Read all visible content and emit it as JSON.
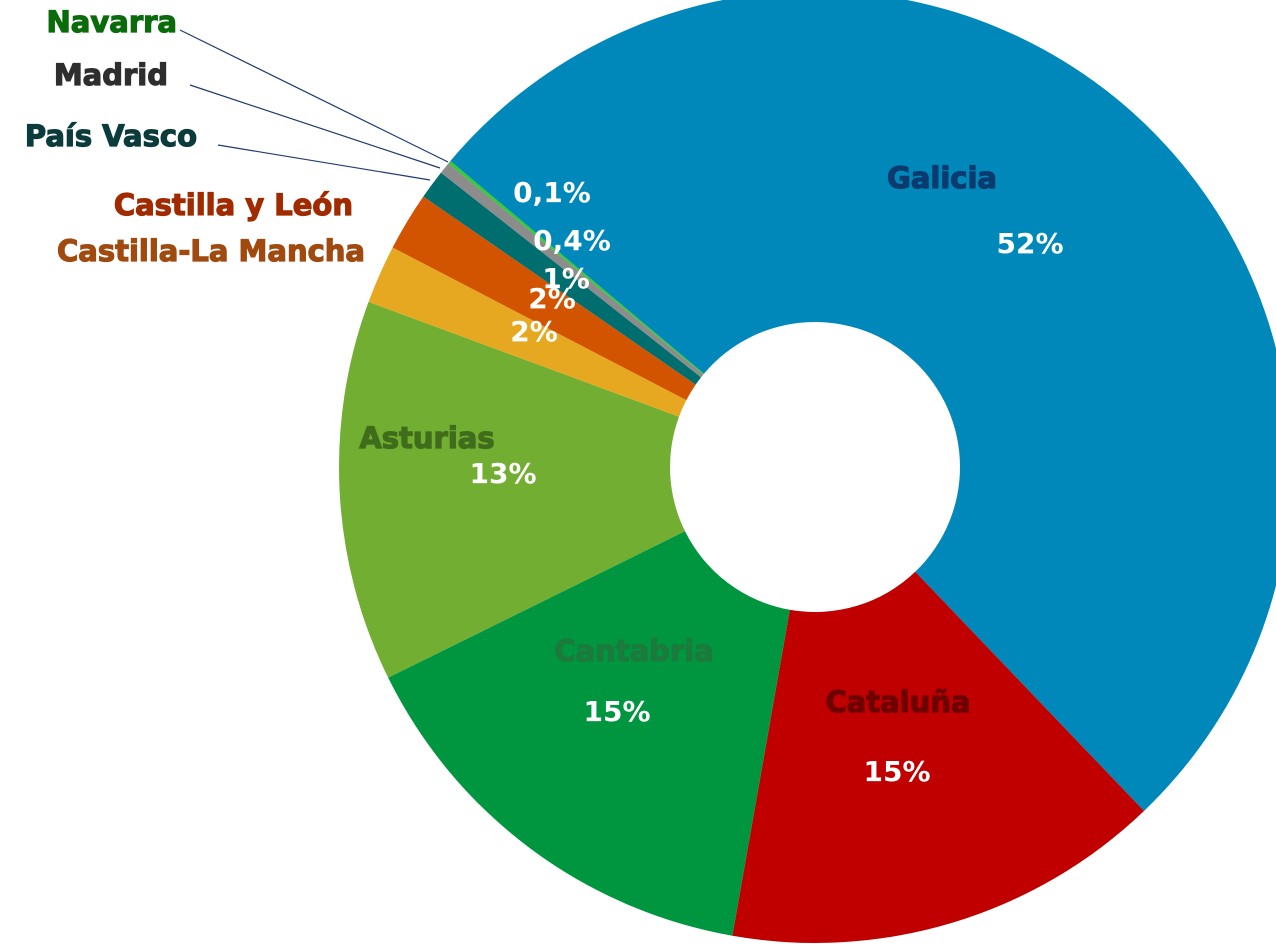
{
  "chart_data": {
    "type": "donut",
    "categories": [
      "Galicia",
      "Cataluña",
      "Cantabria",
      "Asturias",
      "Castilla-La Mancha",
      "Castilla y León",
      "País Vasco",
      "Madrid",
      "Navarra"
    ],
    "values": [
      52,
      15,
      15,
      13,
      2,
      2,
      1,
      0.4,
      0.1
    ],
    "value_labels": [
      "52%",
      "15%",
      "15%",
      "13%",
      "2%",
      "2%",
      "1%",
      "0,4%",
      "0,1%"
    ],
    "colors": [
      "#0088bb",
      "#c00000",
      "#009640",
      "#72ae32",
      "#e6a820",
      "#d35400",
      "#006e6e",
      "#8c8c8c",
      "#33cc33"
    ],
    "label_colors": [
      "#0b3a6e",
      "#6e0000",
      "#1b7a3c",
      "#3f6d1b",
      "#a04a10",
      "#a12a00",
      "#0b3b3b",
      "#2e2e2e",
      "#0a6b0a"
    ]
  }
}
